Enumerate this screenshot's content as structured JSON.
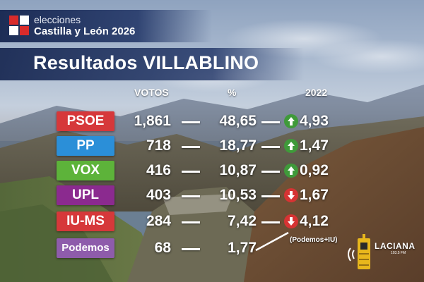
{
  "header": {
    "line1": "elecciones",
    "line2": "Castilla y León 2026",
    "title": "Resultados VILLABLINO"
  },
  "columns": {
    "votes": "VOTOS",
    "pct": "%",
    "prev": "2022"
  },
  "rows": [
    {
      "party": "PSOE",
      "votes": "1,861",
      "pct": "48,65",
      "trend": "up",
      "change": "4,93",
      "color": "#d6383a"
    },
    {
      "party": "PP",
      "votes": "718",
      "pct": "18,77",
      "trend": "up",
      "change": "1,47",
      "color": "#2b8fd8"
    },
    {
      "party": "VOX",
      "votes": "416",
      "pct": "10,87",
      "trend": "up",
      "change": "0,92",
      "color": "#5db33a"
    },
    {
      "party": "UPL",
      "votes": "403",
      "pct": "10,53",
      "trend": "down",
      "change": "1,67",
      "color": "#8b2a8f"
    },
    {
      "party": "IU-MS",
      "votes": "284",
      "pct": "7,42",
      "trend": "down",
      "change": "4,12",
      "color": "#d6383a"
    },
    {
      "party": "Podemos",
      "votes": "68",
      "pct": "1,77",
      "trend": "",
      "change": "",
      "color": "#8e5cab"
    }
  ],
  "note": "(Podemos+IU)",
  "radio": {
    "name": "LACIANA",
    "freq": "103.5 FM",
    "side": "RADIO"
  },
  "colors": {
    "up": "#3f9a3a",
    "down": "#d63333"
  }
}
